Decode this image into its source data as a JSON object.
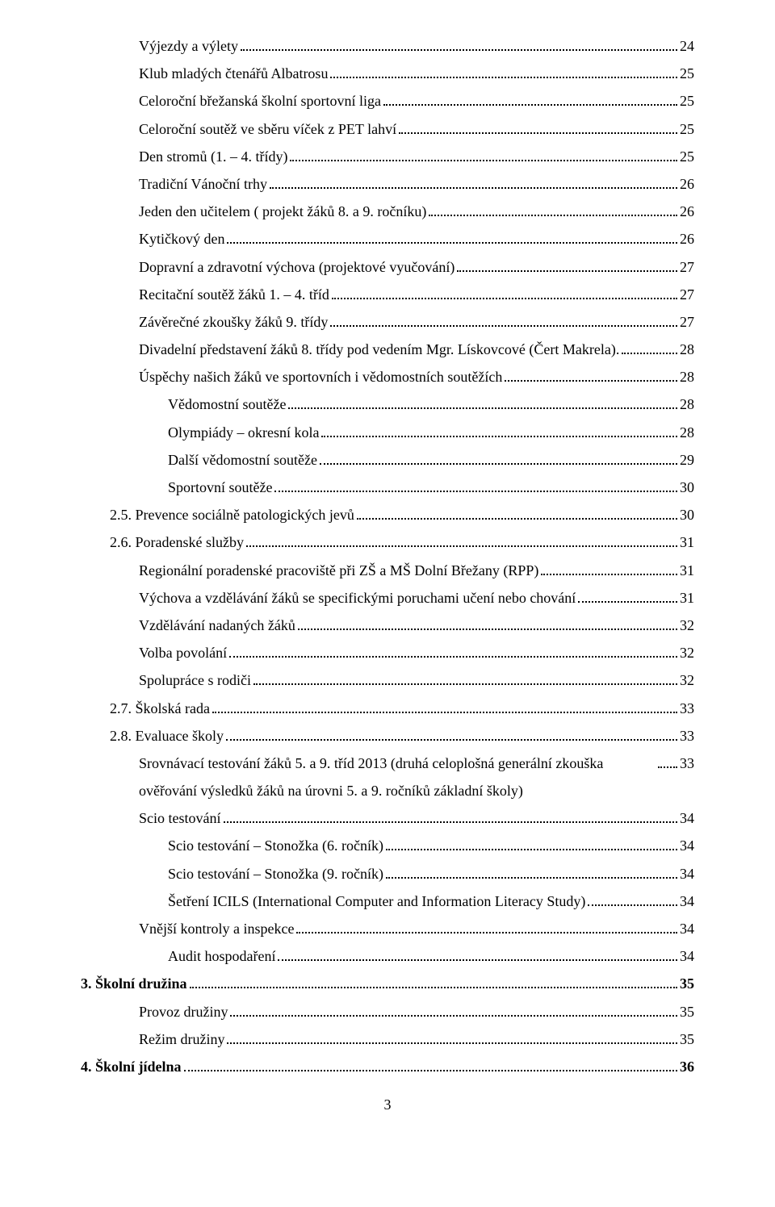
{
  "pageNumber": "3",
  "toc": [
    {
      "label": "Výjezdy a výlety",
      "page": "24",
      "indent": 2,
      "bold": false
    },
    {
      "label": "Klub mladých čtenářů Albatrosu",
      "page": "25",
      "indent": 2,
      "bold": false
    },
    {
      "label": "Celoroční břežanská školní sportovní liga",
      "page": "25",
      "indent": 2,
      "bold": false
    },
    {
      "label": "Celoroční soutěž ve sběru víček z PET lahví",
      "page": "25",
      "indent": 2,
      "bold": false
    },
    {
      "label": "Den stromů (1. – 4. třídy)",
      "page": "25",
      "indent": 2,
      "bold": false
    },
    {
      "label": "Tradiční Vánoční trhy",
      "page": "26",
      "indent": 2,
      "bold": false
    },
    {
      "label": "Jeden den učitelem ( projekt žáků 8. a 9. ročníku)",
      "page": "26",
      "indent": 2,
      "bold": false
    },
    {
      "label": "Kytičkový den",
      "page": "26",
      "indent": 2,
      "bold": false
    },
    {
      "label": "Dopravní a zdravotní výchova (projektové vyučování)",
      "page": "27",
      "indent": 2,
      "bold": false
    },
    {
      "label": "Recitační soutěž žáků 1. – 4. tříd",
      "page": "27",
      "indent": 2,
      "bold": false
    },
    {
      "label": "Závěrečné zkoušky žáků 9. třídy",
      "page": "27",
      "indent": 2,
      "bold": false
    },
    {
      "label": "Divadelní představení žáků 8. třídy pod vedením Mgr. Lískovcové (Čert Makrela).",
      "page": "28",
      "indent": 2,
      "bold": false
    },
    {
      "label": "Úspěchy našich žáků ve sportovních i vědomostních soutěžích",
      "page": "28",
      "indent": 2,
      "bold": false
    },
    {
      "label": "Vědomostní soutěže",
      "page": "28",
      "indent": 3,
      "bold": false
    },
    {
      "label": "Olympiády – okresní kola",
      "page": "28",
      "indent": 3,
      "bold": false
    },
    {
      "label": "Další vědomostní soutěže",
      "page": "29",
      "indent": 3,
      "bold": false
    },
    {
      "label": "Sportovní soutěže",
      "page": "30",
      "indent": 3,
      "bold": false
    },
    {
      "label": "2.5. Prevence sociálně patologických jevů",
      "page": "30",
      "indent": 1,
      "bold": false
    },
    {
      "label": "2.6. Poradenské služby",
      "page": "31",
      "indent": 1,
      "bold": false
    },
    {
      "label": "Regionální poradenské pracoviště při ZŠ a MŠ Dolní Břežany (RPP)",
      "page": "31",
      "indent": 2,
      "bold": false
    },
    {
      "label": "Výchova a vzdělávání žáků se specifickými  poruchami  učení  nebo chování",
      "page": "31",
      "indent": 2,
      "bold": false
    },
    {
      "label": "Vzdělávání nadaných žáků",
      "page": "32",
      "indent": 2,
      "bold": false
    },
    {
      "label": "Volba povolání",
      "page": "32",
      "indent": 2,
      "bold": false
    },
    {
      "label": "Spolupráce s rodiči",
      "page": "32",
      "indent": 2,
      "bold": false
    },
    {
      "label": "2.7. Školská rada",
      "page": "33",
      "indent": 1,
      "bold": false
    },
    {
      "label": "2.8. Evaluace školy",
      "page": "33",
      "indent": 1,
      "bold": false
    },
    {
      "label": "Srovnávací testování žáků 5. a 9. tříd 2013 (druhá celoplošná generální zkouška ověřování výsledků žáků na úrovni 5. a 9. ročníků základní školy)",
      "page": "33",
      "indent": 2,
      "bold": false,
      "multiline": true
    },
    {
      "label": "Scio testování",
      "page": "34",
      "indent": 2,
      "bold": false
    },
    {
      "label": "Scio testování – Stonožka (6. ročník)",
      "page": "34",
      "indent": 3,
      "bold": false
    },
    {
      "label": "Scio testování – Stonožka (9. ročník)",
      "page": "34",
      "indent": 3,
      "bold": false
    },
    {
      "label": "Šetření ICILS (International Computer and Information Literacy Study)",
      "page": "34",
      "indent": 3,
      "bold": false
    },
    {
      "label": "Vnější kontroly a inspekce",
      "page": "34",
      "indent": 2,
      "bold": false
    },
    {
      "label": "Audit hospodaření",
      "page": "34",
      "indent": 3,
      "bold": false
    },
    {
      "label": "3. Školní družina",
      "page": "35",
      "indent": 0,
      "bold": true
    },
    {
      "label": "Provoz družiny",
      "page": "35",
      "indent": 2,
      "bold": false
    },
    {
      "label": "Režim družiny",
      "page": "35",
      "indent": 2,
      "bold": false
    },
    {
      "label": "4. Školní jídelna",
      "page": "36",
      "indent": 0,
      "bold": true
    }
  ]
}
